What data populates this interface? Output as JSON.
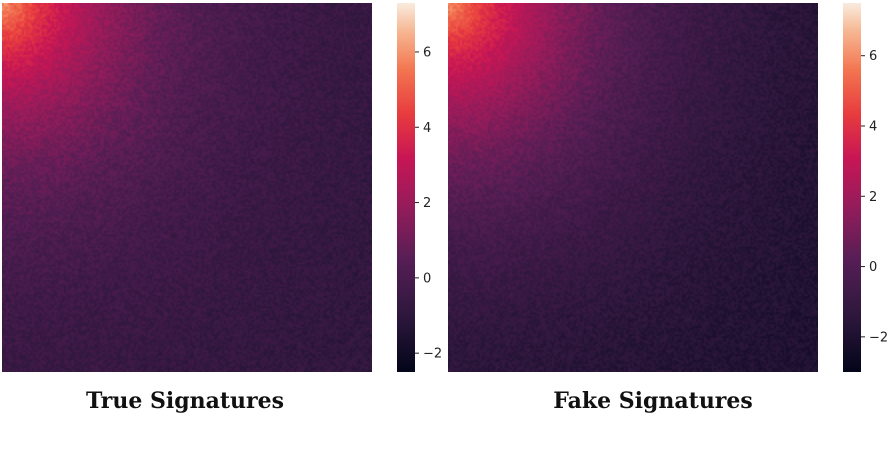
{
  "chart_data": [
    {
      "type": "heatmap",
      "title": "True Signatures",
      "colormap": "rocket",
      "colorbar": {
        "min": -2.5,
        "max": 7.3,
        "ticks": [
          -2,
          0,
          2,
          4,
          6
        ]
      },
      "peak_value": 6.0,
      "floor_value": -1.0,
      "pattern": "high at top-left corner, decaying toward bottom-right",
      "grid": false
    },
    {
      "type": "heatmap",
      "title": "Fake Signatures",
      "colormap": "rocket",
      "colorbar": {
        "min": -3.0,
        "max": 7.5,
        "ticks": [
          -2,
          0,
          2,
          4,
          6
        ]
      },
      "peak_value": 6.0,
      "floor_value": -2.2,
      "pattern": "high at top-left corner, decaying toward bottom-right",
      "grid": false
    }
  ]
}
